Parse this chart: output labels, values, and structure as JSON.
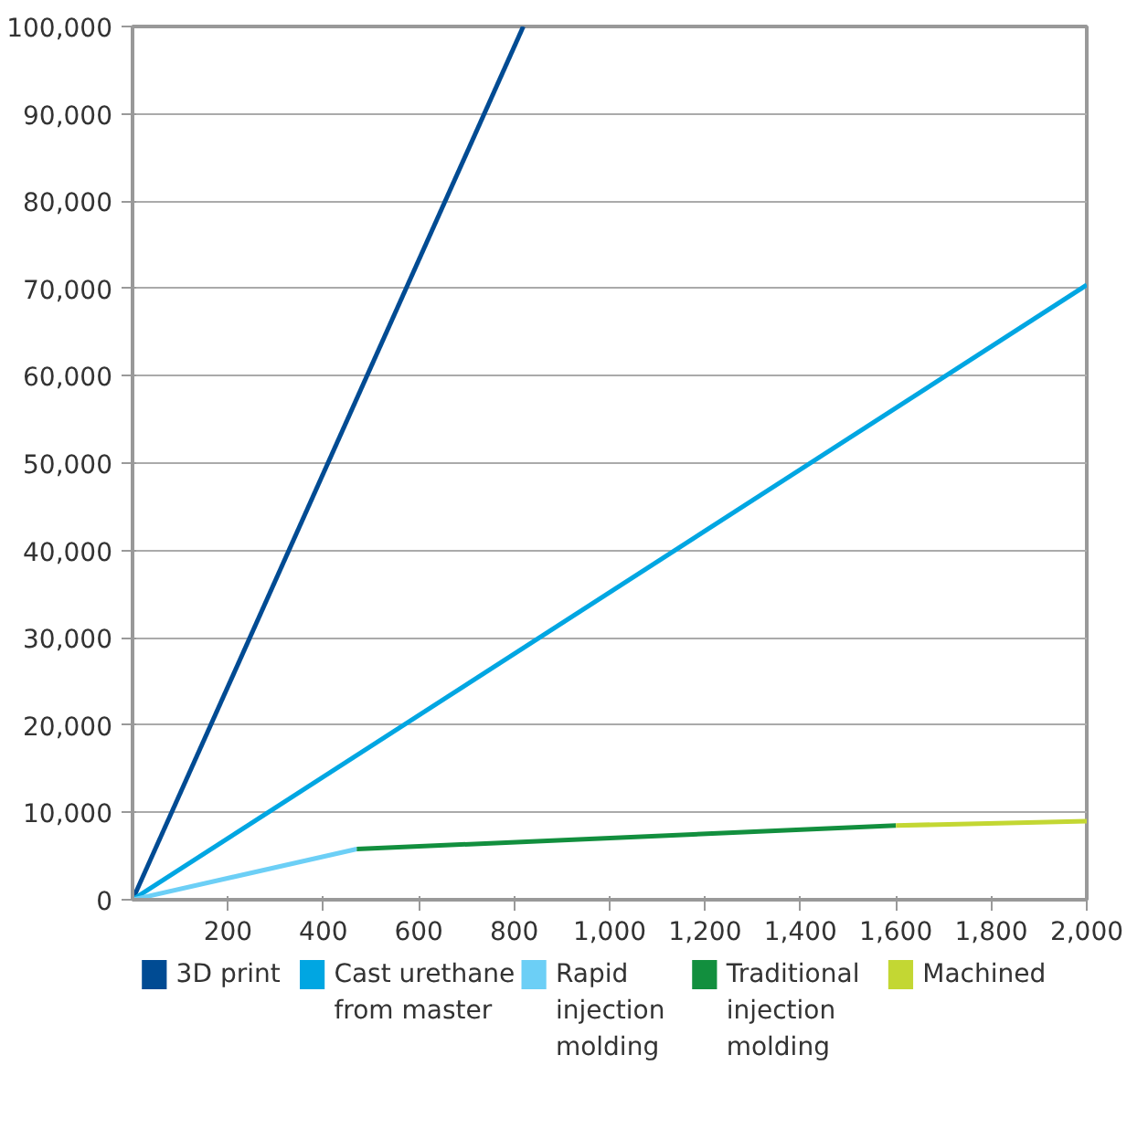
{
  "chart_data": {
    "type": "line",
    "xlim": [
      0,
      2000
    ],
    "ylim": [
      0,
      100000
    ],
    "xticks": [
      200,
      400,
      600,
      800,
      {
        "value": 1000,
        "label": "1,000"
      },
      {
        "value": 1200,
        "label": "1,200"
      },
      {
        "value": 1400,
        "label": "1,400"
      },
      {
        "value": 1600,
        "label": "1,600"
      },
      {
        "value": 1800,
        "label": "1,800"
      },
      {
        "value": 2000,
        "label": "2,000"
      }
    ],
    "yticks": [
      0,
      {
        "value": 10000,
        "label": "10,000"
      },
      {
        "value": 20000,
        "label": "20,000"
      },
      {
        "value": 30000,
        "label": "30,000"
      },
      {
        "value": 40000,
        "label": "40,000"
      },
      {
        "value": 50000,
        "label": "50,000"
      },
      {
        "value": 60000,
        "label": "60,000"
      },
      {
        "value": 70000,
        "label": "70,000"
      },
      {
        "value": 80000,
        "label": "80,000"
      },
      {
        "value": 90000,
        "label": "90,000"
      },
      {
        "value": 100000,
        "label": "100,000"
      }
    ],
    "grid": "y",
    "legend": "bottom",
    "marker": "none",
    "line_style": "solid",
    "series": [
      {
        "name": "3D print",
        "color": "#004b93",
        "x": [
          0,
          819
        ],
        "values": [
          0,
          100000
        ]
      },
      {
        "name": "Cast urethane from master",
        "color": "#00a6e2",
        "x": [
          0,
          2000
        ],
        "values": [
          0,
          70400
        ]
      },
      {
        "name": "Rapid injection molding",
        "color": "#6ccff6",
        "x": [
          0,
          470
        ],
        "values": [
          0,
          5800
        ]
      },
      {
        "name": "Traditional injection molding",
        "color": "#128f3e",
        "x": [
          470,
          1600
        ],
        "values": [
          5800,
          8500
        ]
      },
      {
        "name": "Machined",
        "color": "#c3d733",
        "x": [
          1600,
          2000
        ],
        "values": [
          8500,
          9000
        ]
      }
    ]
  }
}
